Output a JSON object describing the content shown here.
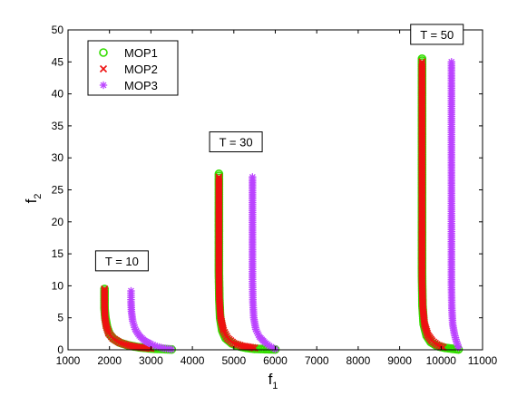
{
  "chart_data": {
    "type": "scatter",
    "xlabel": "f",
    "xlabel_sub": "1",
    "ylabel": "f",
    "ylabel_sub": "2",
    "xlim": [
      1000,
      11000
    ],
    "ylim": [
      0,
      50
    ],
    "xticks": [
      1000,
      2000,
      3000,
      4000,
      5000,
      6000,
      7000,
      8000,
      9000,
      10000,
      11000
    ],
    "yticks": [
      0,
      5,
      10,
      15,
      20,
      25,
      30,
      35,
      40,
      45,
      50
    ],
    "legend_position": "top-left",
    "series": [
      {
        "name": "MOP1",
        "marker": "circle",
        "color": "#33dd00",
        "groups": [
          [
            [
              1880,
              9.5
            ],
            [
              1880,
              8.0
            ],
            [
              1880,
              6.5
            ],
            [
              1900,
              5.0
            ],
            [
              1940,
              3.6
            ],
            [
              2000,
              2.5
            ],
            [
              2100,
              1.7
            ],
            [
              2250,
              1.1
            ],
            [
              2450,
              0.7
            ],
            [
              2700,
              0.4
            ],
            [
              3000,
              0.2
            ],
            [
              3500,
              0.05
            ]
          ],
          [
            [
              4640,
              27.5
            ],
            [
              4640,
              24.0
            ],
            [
              4640,
              20.0
            ],
            [
              4640,
              16.0
            ],
            [
              4640,
              12.0
            ],
            [
              4650,
              8.0
            ],
            [
              4670,
              5.0
            ],
            [
              4720,
              3.0
            ],
            [
              4800,
              1.8
            ],
            [
              4950,
              1.0
            ],
            [
              5100,
              0.6
            ],
            [
              5300,
              0.3
            ],
            [
              5500,
              0.15
            ],
            [
              6000,
              0.05
            ]
          ],
          [
            [
              9540,
              45.5
            ],
            [
              9540,
              40.0
            ],
            [
              9540,
              34.0
            ],
            [
              9540,
              28.0
            ],
            [
              9540,
              23.0
            ],
            [
              9540,
              18.0
            ],
            [
              9540,
              12.0
            ],
            [
              9550,
              7.0
            ],
            [
              9580,
              4.0
            ],
            [
              9650,
              2.2
            ],
            [
              9750,
              1.2
            ],
            [
              9900,
              0.6
            ],
            [
              10100,
              0.3
            ],
            [
              10420,
              0.05
            ]
          ]
        ]
      },
      {
        "name": "MOP2",
        "marker": "x",
        "color": "#ee1111",
        "groups": [
          [
            [
              1880,
              9.5
            ],
            [
              1880,
              7.0
            ],
            [
              1890,
              5.0
            ],
            [
              1920,
              3.8
            ],
            [
              1980,
              2.6
            ],
            [
              2080,
              1.8
            ],
            [
              2250,
              1.1
            ],
            [
              2450,
              0.7
            ],
            [
              2700,
              0.4
            ],
            [
              3000,
              0.2
            ]
          ],
          [
            [
              4640,
              27.0
            ],
            [
              4640,
              22.0
            ],
            [
              4640,
              17.0
            ],
            [
              4640,
              12.0
            ],
            [
              4650,
              8.0
            ],
            [
              4680,
              5.0
            ],
            [
              4750,
              3.0
            ],
            [
              4850,
              1.8
            ],
            [
              5000,
              1.0
            ],
            [
              5200,
              0.6
            ],
            [
              5500,
              0.3
            ]
          ],
          [
            [
              9540,
              45.0
            ],
            [
              9540,
              38.0
            ],
            [
              9540,
              31.0
            ],
            [
              9540,
              24.0
            ],
            [
              9540,
              17.0
            ],
            [
              9540,
              11.0
            ],
            [
              9560,
              6.5
            ],
            [
              9600,
              4.0
            ],
            [
              9680,
              2.3
            ],
            [
              9780,
              1.4
            ],
            [
              9900,
              0.8
            ],
            [
              10050,
              0.4
            ]
          ]
        ]
      },
      {
        "name": "MOP3",
        "marker": "star",
        "color": "#bb44ff",
        "groups": [
          [
            [
              2520,
              9.2
            ],
            [
              2520,
              7.5
            ],
            [
              2530,
              6.0
            ],
            [
              2560,
              4.5
            ],
            [
              2620,
              3.2
            ],
            [
              2720,
              2.2
            ],
            [
              2850,
              1.4
            ],
            [
              3000,
              0.9
            ],
            [
              3150,
              0.5
            ],
            [
              3300,
              0.25
            ],
            [
              3500,
              0.08
            ]
          ],
          [
            [
              5450,
              27.0
            ],
            [
              5450,
              23.0
            ],
            [
              5450,
              19.0
            ],
            [
              5450,
              15.0
            ],
            [
              5450,
              11.0
            ],
            [
              5460,
              7.5
            ],
            [
              5480,
              5.0
            ],
            [
              5530,
              3.2
            ],
            [
              5620,
              2.0
            ],
            [
              5740,
              1.2
            ],
            [
              5860,
              0.6
            ],
            [
              6000,
              0.1
            ]
          ],
          [
            [
              10250,
              45.0
            ],
            [
              10250,
              39.0
            ],
            [
              10250,
              33.0
            ],
            [
              10250,
              27.0
            ],
            [
              10250,
              21.0
            ],
            [
              10250,
              15.0
            ],
            [
              10250,
              10.0
            ],
            [
              10260,
              6.5
            ],
            [
              10280,
              4.0
            ],
            [
              10320,
              2.5
            ],
            [
              10370,
              1.3
            ],
            [
              10420,
              0.4
            ]
          ]
        ]
      }
    ],
    "annotations": [
      {
        "text": "T = 10",
        "x": 2300,
        "y": 13.9
      },
      {
        "text": "T = 30",
        "x": 5050,
        "y": 32.5
      },
      {
        "text": "T = 50",
        "x": 9900,
        "y": 49.3
      }
    ]
  }
}
